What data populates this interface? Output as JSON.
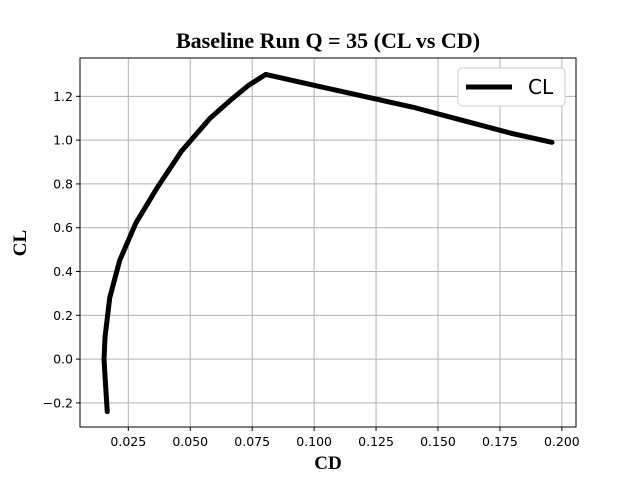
{
  "chart_data": {
    "type": "line",
    "title": "Baseline Run Q = 35 (CL vs CD)",
    "xlabel": "CD",
    "ylabel": "CL",
    "xlim": [
      0.0055,
      0.2057
    ],
    "ylim": [
      -0.31,
      1.375
    ],
    "xticks": [
      0.025,
      0.05,
      0.075,
      0.1,
      0.125,
      0.15,
      0.175,
      0.2
    ],
    "xtick_labels": [
      "0.025",
      "0.050",
      "0.075",
      "0.100",
      "0.125",
      "0.150",
      "0.175",
      "0.200"
    ],
    "yticks": [
      -0.2,
      0.0,
      0.2,
      0.4,
      0.6,
      0.8,
      1.0,
      1.2
    ],
    "ytick_labels": [
      "−0.2",
      "0.0",
      "0.2",
      "0.4",
      "0.6",
      "0.8",
      "1.0",
      "1.2"
    ],
    "grid": true,
    "legend": "top-right",
    "colors": {
      "line": "#000000",
      "grid": "#b0b0b0"
    },
    "series": [
      {
        "name": "CL",
        "x": [
          0.0165,
          0.0155,
          0.0152,
          0.0156,
          0.0175,
          0.0215,
          0.028,
          0.0365,
          0.0465,
          0.058,
          0.066,
          0.0735,
          0.0805,
          0.1,
          0.12,
          0.14,
          0.16,
          0.18,
          0.196
        ],
        "y": [
          -0.24,
          -0.06,
          0.0,
          0.1,
          0.28,
          0.45,
          0.62,
          0.78,
          0.95,
          1.1,
          1.18,
          1.25,
          1.3,
          1.25,
          1.2,
          1.15,
          1.09,
          1.03,
          0.99
        ]
      }
    ]
  }
}
